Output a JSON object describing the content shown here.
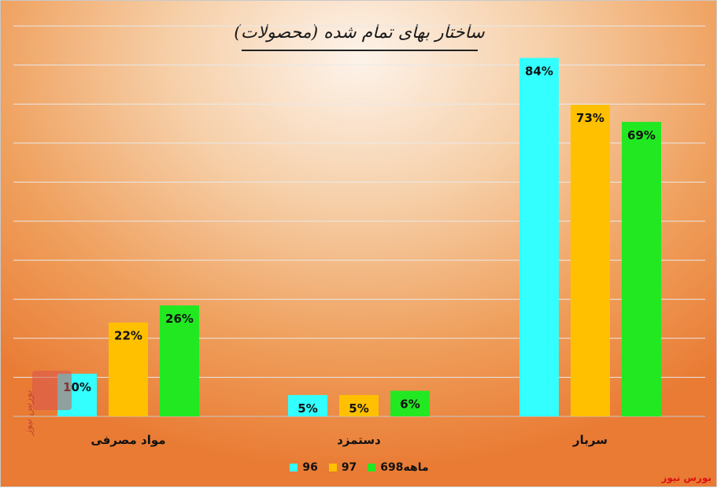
{
  "title": "ساختار بهای تمام شده (محصولات)",
  "source": "بورس نیوز",
  "watermark": "بورس نیوز",
  "legend": [
    {
      "name": "96",
      "color": "#33ffff"
    },
    {
      "name": "97",
      "color": "#ffc000"
    },
    {
      "name": "6ماهه98",
      "color": "#22e822"
    }
  ],
  "chart_data": {
    "type": "bar",
    "title": "ساختار بهای تمام شده (محصولات)",
    "categories": [
      "مواد مصرفی",
      "دستمزد",
      "سربار"
    ],
    "series": [
      {
        "name": "96",
        "values": [
          10,
          5,
          84
        ],
        "labels": [
          "10%",
          "5%",
          "84%"
        ]
      },
      {
        "name": "97",
        "values": [
          22,
          5,
          73
        ],
        "labels": [
          "22%",
          "5%",
          "73%"
        ]
      },
      {
        "name": "6ماهه98",
        "values": [
          26,
          6,
          69
        ],
        "labels": [
          "26%",
          "6%",
          "69%"
        ]
      }
    ],
    "ylim": [
      0,
      90
    ],
    "grid": true,
    "legend_position": "bottom"
  }
}
